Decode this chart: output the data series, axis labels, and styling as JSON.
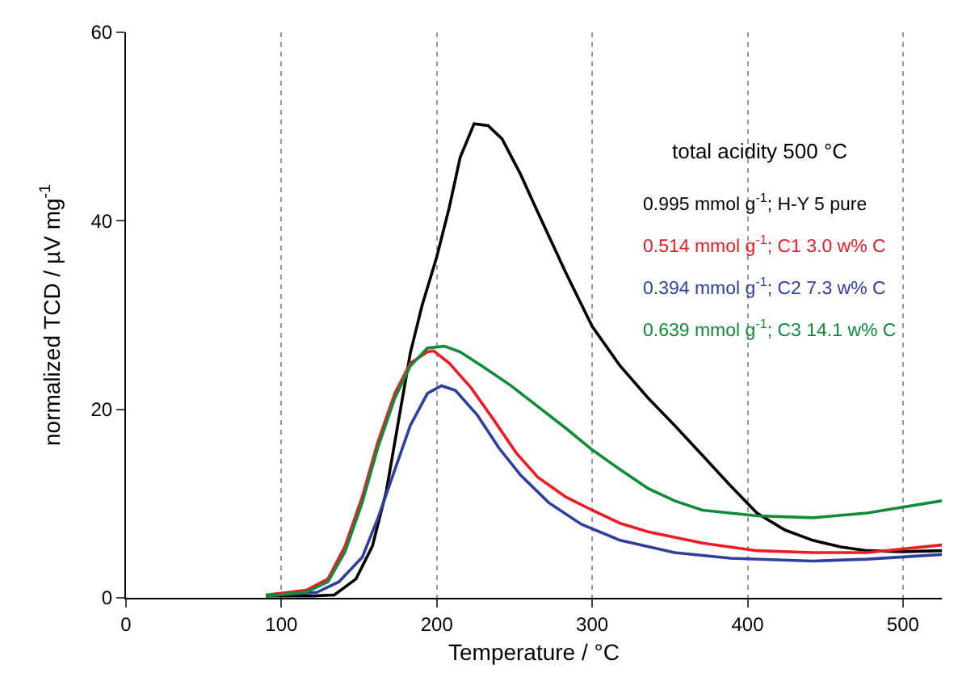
{
  "chart_data": {
    "type": "line",
    "xlabel": "Temperature / °C",
    "ylabel": "normalized TCD / µV mg$^{-1}$",
    "xlim": [
      0,
      525
    ],
    "xticks": [
      0,
      100,
      200,
      300,
      400,
      500
    ],
    "ylim": [
      0,
      60
    ],
    "yticks": [
      0,
      20,
      40,
      60
    ],
    "grid": "x",
    "legend": false,
    "marker": "none",
    "line_style": "solid",
    "annotations": [
      "total acidity 500 °C"
    ],
    "series": [
      {
        "name": "0.995 mmol g$^{-1}$; H-Y 5 pure",
        "color": "#000000",
        "x": [
          90,
          120,
          134,
          148,
          158.6,
          167.5,
          176,
          183,
          190.5,
          200,
          208,
          215,
          224,
          233,
          242,
          254,
          265,
          283,
          300,
          318,
          336,
          353,
          371,
          389,
          406,
          424,
          442,
          460,
          477,
          500,
          525
        ],
        "values": [
          0.2,
          0.2,
          0.3,
          2,
          5.5,
          11.3,
          19.4,
          26,
          31,
          36.2,
          41.4,
          46.7,
          50.3,
          50.1,
          48.7,
          44.9,
          40.9,
          34.5,
          28.8,
          24.6,
          21.2,
          18.3,
          15.1,
          11.9,
          9.0,
          7.2,
          6.1,
          5.4,
          5.0,
          4.9,
          5.0
        ]
      },
      {
        "name": "0.514 mmol g$^{-1}$; C1 3.0 w% C",
        "color": "#ed1c24",
        "x": [
          90,
          116,
          130,
          141,
          152,
          162,
          173,
          183,
          194,
          198,
          208,
          222,
          237,
          251,
          265,
          283,
          300,
          318,
          336,
          371,
          406,
          442,
          477,
          525
        ],
        "values": [
          0.3,
          0.8,
          2,
          5.5,
          10.7,
          16.5,
          21.7,
          24.9,
          26.1,
          26.2,
          24.9,
          22.3,
          18.8,
          15.4,
          12.8,
          10.7,
          9.3,
          7.9,
          7.0,
          5.8,
          5.0,
          4.8,
          4.8,
          5.6
        ]
      },
      {
        "name": "0.394 mmol g$^{-1}$; C2 7.3 w% C",
        "color": "#2e3f9e",
        "x": [
          90,
          123,
          137,
          152,
          162,
          173,
          183,
          194,
          203,
          212,
          226,
          240,
          254,
          272,
          293,
          318,
          353,
          389,
          442,
          477,
          525
        ],
        "values": [
          0.2,
          0.6,
          1.7,
          4.3,
          8.4,
          13.6,
          18.3,
          21.7,
          22.5,
          22.0,
          19.4,
          15.9,
          13.0,
          10.1,
          7.8,
          6.1,
          4.8,
          4.2,
          3.9,
          4.1,
          4.6
        ]
      },
      {
        "name": "0.639 mmol g$^{-1}$; C3 14.1 w% C",
        "color": "#138a3a",
        "x": [
          90,
          116,
          130,
          141,
          152,
          162,
          173,
          183,
          194,
          205,
          215,
          229,
          247,
          265,
          283,
          300,
          318,
          336,
          353,
          371,
          406,
          442,
          477,
          525
        ],
        "values": [
          0.2,
          0.6,
          1.7,
          4.9,
          10.1,
          15.9,
          21.2,
          24.6,
          26.5,
          26.7,
          26.1,
          24.6,
          22.6,
          20.3,
          18.0,
          15.7,
          13.6,
          11.6,
          10.3,
          9.3,
          8.7,
          8.5,
          9.0,
          10.3
        ]
      }
    ]
  }
}
